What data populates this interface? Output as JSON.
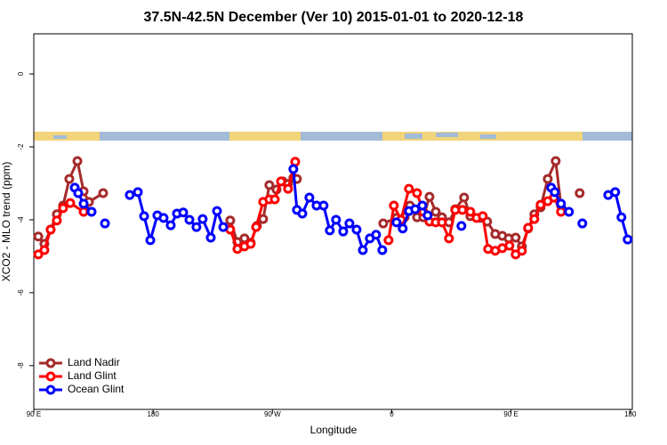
{
  "chart_data": {
    "type": "line",
    "title": "37.5N-42.5N December (Ver 10)   2015-01-01 to 2020-12-18",
    "x_label": "Longitude",
    "y_label": "XCO2 - MLO trend (ppm)",
    "xlim": [
      90,
      541.5
    ],
    "ylim": [
      -9.2,
      1.1
    ],
    "xticks": [
      {
        "value": 90,
        "label": "90 E"
      },
      180,
      {
        "value": 270,
        "label": "90 W"
      },
      {
        "value": 360,
        "label": "0"
      },
      {
        "value": 450,
        "label": "90 E"
      },
      {
        "value": 540,
        "label": "180"
      }
    ],
    "yticks": [
      0,
      -2,
      -4,
      -6,
      -8
    ],
    "legend": "bottom-left",
    "series": [
      {
        "name": "Land Nadir",
        "color": "#a52a2a",
        "x": [
          93.4,
          98.0,
          102.7,
          107.4,
          112.1,
          116.8,
          122.9,
          127.6,
          131.6,
          142.3,
          null,
          238.2,
          243.6,
          248.9,
          253.6,
          258.3,
          263.0,
          267.7,
          273.1,
          277.8,
          281.8,
          285.8,
          288.5,
          null,
          353.6,
          363.6,
          369.7,
          373.7,
          379.1,
          383.8,
          388.5,
          393.2,
          397.9,
          403.2,
          407.9,
          414.6,
          419.3,
          426.7,
          432.0,
          438.1,
          443.4,
          448.2,
          453.5,
          458.2,
          462.9,
          467.6,
          472.3,
          477.7,
          483.7,
          487.7,
          null,
          501.8
        ],
        "values": [
          -4.46,
          -4.66,
          -4.27,
          -3.85,
          -3.61,
          -2.88,
          -2.39,
          -3.22,
          -3.51,
          -3.27,
          null,
          -4.02,
          -4.61,
          -4.51,
          -4.63,
          -4.17,
          -3.98,
          -3.05,
          -3.17,
          -2.95,
          -3.02,
          -2.85,
          -2.88,
          null,
          -4.1,
          -3.95,
          -3.93,
          -3.61,
          -3.93,
          -3.93,
          -3.37,
          -3.78,
          -3.93,
          -4.07,
          -3.71,
          -3.39,
          -3.9,
          -3.95,
          -4.05,
          -4.39,
          -4.44,
          -4.51,
          -4.49,
          -4.73,
          -4.24,
          -3.85,
          -3.66,
          -2.88,
          -2.39,
          -3.61,
          null,
          -3.27
        ]
      },
      {
        "name": "Land Glint",
        "color": "#ff0000",
        "x": [
          93.4,
          98.0,
          102.7,
          107.4,
          112.1,
          117.5,
          127.6,
          null,
          238.2,
          243.6,
          248.9,
          253.6,
          257.7,
          263.0,
          267.7,
          271.8,
          276.5,
          281.8,
          287.2,
          null,
          357.6,
          361.6,
          367.0,
          373.0,
          379.1,
          383.8,
          388.5,
          393.2,
          397.9,
          403.2,
          407.9,
          413.3,
          419.3,
          424.0,
          428.7,
          432.7,
          438.1,
          443.4,
          448.8,
          453.5,
          458.2,
          462.9,
          467.6,
          472.3,
          477.7,
          482.4,
          487.7
        ],
        "values": [
          -4.95,
          -4.83,
          -4.27,
          -4.02,
          -3.68,
          -3.54,
          -3.78,
          null,
          -4.27,
          -4.8,
          -4.73,
          -4.66,
          -4.2,
          -3.51,
          -3.44,
          -3.44,
          -2.95,
          -3.15,
          -2.41,
          null,
          -4.56,
          -3.61,
          -4.0,
          -3.15,
          -3.27,
          -3.78,
          -4.05,
          -4.07,
          -4.07,
          -4.51,
          -3.73,
          -3.73,
          -3.78,
          -3.95,
          -3.9,
          -4.8,
          -4.85,
          -4.78,
          -4.71,
          -4.95,
          -4.85,
          -4.22,
          -3.98,
          -3.59,
          -3.49,
          -3.39,
          -3.78
        ]
      },
      {
        "name": "Ocean Glint",
        "color": "#0000ff",
        "x": [
          120.9,
          123.5,
          127.6,
          133.6,
          null,
          143.7,
          null,
          162.4,
          168.5,
          173.2,
          177.9,
          183.2,
          187.9,
          193.3,
          198.0,
          202.7,
          207.4,
          212.7,
          217.4,
          223.5,
          228.2,
          232.9,
          null,
          285.8,
          288.5,
          292.6,
          297.9,
          303.3,
          308.6,
          313.3,
          318.0,
          323.4,
          328.1,
          333.5,
          338.2,
          343.5,
          348.2,
          352.9,
          null,
          363.6,
          368.3,
          373.0,
          377.7,
          383.1,
          387.1,
          null,
          412.6,
          null,
          480.3,
          483.0,
          487.7,
          493.7,
          null,
          503.8,
          null,
          523.3,
          528.6,
          533.3,
          538.0
        ],
        "values": [
          -3.12,
          -3.27,
          -3.56,
          -3.78,
          null,
          -4.1,
          null,
          -3.32,
          -3.24,
          -3.9,
          -4.56,
          -3.88,
          -3.95,
          -4.15,
          -3.83,
          -3.8,
          -4.0,
          -4.2,
          -3.98,
          -4.49,
          -3.76,
          -4.2,
          null,
          -2.61,
          -3.73,
          -3.83,
          -3.39,
          -3.61,
          -3.61,
          -4.29,
          -4.0,
          -4.32,
          -4.1,
          -4.27,
          -4.83,
          -4.51,
          -4.41,
          -4.83,
          null,
          -4.07,
          -4.24,
          -3.76,
          -3.71,
          -3.61,
          -3.88,
          null,
          -4.17,
          null,
          -3.12,
          -3.24,
          -3.56,
          -3.78,
          null,
          -4.1,
          null,
          -3.32,
          -3.24,
          -3.93,
          -4.54
        ]
      }
    ]
  }
}
